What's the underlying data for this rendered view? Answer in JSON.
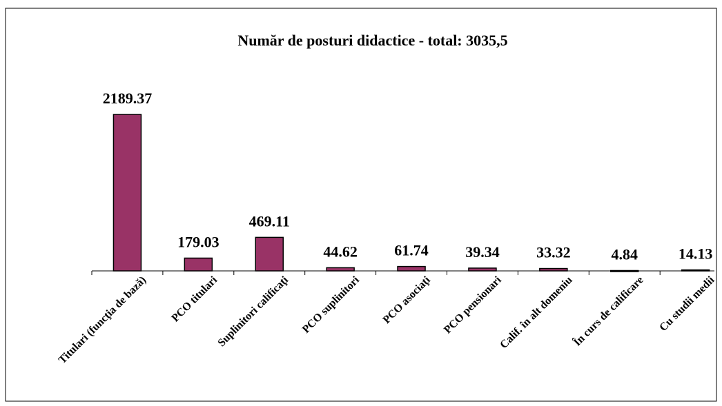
{
  "chart_data": {
    "type": "bar",
    "title": "Număr de posturi didactice - total: 3035,5",
    "categories": [
      "Titulari (funcţia de bază)",
      "PCO titulari",
      "Suplinitori calificaţi",
      "PCO suplinitori",
      "PCO asociaţi",
      "PCO pensionari",
      "Calif. în alt domeniu",
      "În curs de calificare",
      "Cu studii medii"
    ],
    "values": [
      2189.37,
      179.03,
      469.11,
      44.62,
      61.74,
      39.34,
      33.32,
      4.84,
      14.13
    ],
    "color": "#993366"
  }
}
